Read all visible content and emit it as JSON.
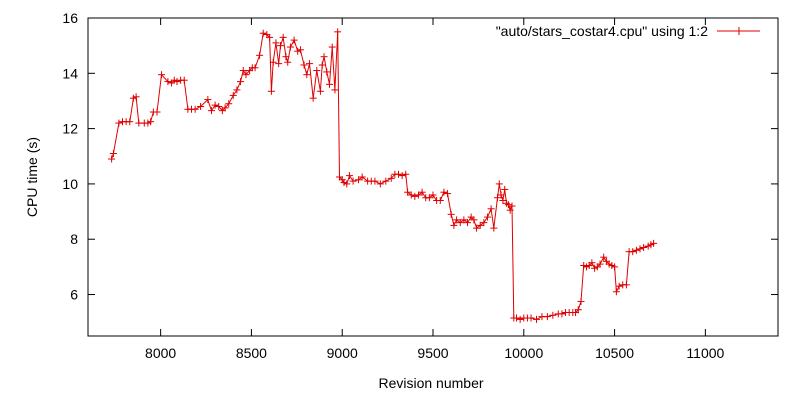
{
  "chart_data": {
    "type": "line",
    "title": "",
    "xlabel": "Revision number",
    "ylabel": "CPU time (s)",
    "xlim": [
      7600,
      11400
    ],
    "ylim": [
      4.5,
      16
    ],
    "xticks": [
      8000,
      8500,
      9000,
      9500,
      10000,
      10500,
      11000
    ],
    "yticks": [
      6,
      8,
      10,
      12,
      14,
      16
    ],
    "grid": false,
    "legend_position": "top-right",
    "colors": {
      "series": "#e00000",
      "axes": "#000000"
    },
    "series": [
      {
        "name": "\"auto/stars_costar4.cpu\" using 1:2",
        "marker": "plus",
        "points": [
          [
            7730,
            10.9
          ],
          [
            7740,
            11.1
          ],
          [
            7770,
            12.2
          ],
          [
            7790,
            12.25
          ],
          [
            7810,
            12.25
          ],
          [
            7830,
            12.25
          ],
          [
            7850,
            13.1
          ],
          [
            7865,
            13.15
          ],
          [
            7880,
            12.2
          ],
          [
            7910,
            12.2
          ],
          [
            7930,
            12.2
          ],
          [
            7945,
            12.25
          ],
          [
            7960,
            12.6
          ],
          [
            7980,
            12.6
          ],
          [
            8005,
            13.95
          ],
          [
            8040,
            13.7
          ],
          [
            8060,
            13.65
          ],
          [
            8075,
            13.75
          ],
          [
            8090,
            13.7
          ],
          [
            8110,
            13.75
          ],
          [
            8130,
            13.75
          ],
          [
            8150,
            12.7
          ],
          [
            8170,
            12.7
          ],
          [
            8190,
            12.7
          ],
          [
            8220,
            12.8
          ],
          [
            8260,
            13.05
          ],
          [
            8280,
            12.65
          ],
          [
            8300,
            12.85
          ],
          [
            8320,
            12.8
          ],
          [
            8340,
            12.65
          ],
          [
            8355,
            12.75
          ],
          [
            8375,
            12.9
          ],
          [
            8400,
            13.2
          ],
          [
            8420,
            13.4
          ],
          [
            8440,
            13.7
          ],
          [
            8455,
            14.1
          ],
          [
            8470,
            13.95
          ],
          [
            8490,
            14.1
          ],
          [
            8505,
            14.2
          ],
          [
            8520,
            14.2
          ],
          [
            8545,
            14.65
          ],
          [
            8565,
            15.45
          ],
          [
            8585,
            15.4
          ],
          [
            8600,
            15.3
          ],
          [
            8610,
            13.35
          ],
          [
            8620,
            14.4
          ],
          [
            8635,
            15.1
          ],
          [
            8650,
            14.35
          ],
          [
            8660,
            15.0
          ],
          [
            8675,
            15.3
          ],
          [
            8690,
            14.6
          ],
          [
            8700,
            14.4
          ],
          [
            8715,
            14.95
          ],
          [
            8735,
            15.2
          ],
          [
            8755,
            14.8
          ],
          [
            8770,
            14.85
          ],
          [
            8790,
            14.3
          ],
          [
            8805,
            13.95
          ],
          [
            8820,
            14.35
          ],
          [
            8840,
            13.1
          ],
          [
            8860,
            14.1
          ],
          [
            8880,
            13.35
          ],
          [
            8890,
            14.3
          ],
          [
            8900,
            14.6
          ],
          [
            8915,
            14.05
          ],
          [
            8930,
            13.6
          ],
          [
            8945,
            14.95
          ],
          [
            8960,
            13.4
          ],
          [
            8975,
            15.5
          ],
          [
            8985,
            10.25
          ],
          [
            9000,
            10.15
          ],
          [
            9010,
            10.05
          ],
          [
            9025,
            10.0
          ],
          [
            9040,
            10.3
          ],
          [
            9060,
            10.1
          ],
          [
            9090,
            10.15
          ],
          [
            9110,
            10.25
          ],
          [
            9140,
            10.1
          ],
          [
            9160,
            10.1
          ],
          [
            9180,
            10.1
          ],
          [
            9210,
            10.0
          ],
          [
            9240,
            10.1
          ],
          [
            9270,
            10.2
          ],
          [
            9290,
            10.35
          ],
          [
            9310,
            10.35
          ],
          [
            9330,
            10.3
          ],
          [
            9350,
            10.35
          ],
          [
            9360,
            9.7
          ],
          [
            9380,
            9.6
          ],
          [
            9400,
            9.55
          ],
          [
            9420,
            9.6
          ],
          [
            9440,
            9.7
          ],
          [
            9460,
            9.5
          ],
          [
            9480,
            9.5
          ],
          [
            9500,
            9.6
          ],
          [
            9520,
            9.4
          ],
          [
            9540,
            9.4
          ],
          [
            9560,
            9.7
          ],
          [
            9580,
            9.65
          ],
          [
            9600,
            8.9
          ],
          [
            9615,
            8.5
          ],
          [
            9630,
            8.7
          ],
          [
            9650,
            8.6
          ],
          [
            9670,
            8.7
          ],
          [
            9690,
            8.6
          ],
          [
            9710,
            8.8
          ],
          [
            9725,
            8.7
          ],
          [
            9740,
            8.4
          ],
          [
            9760,
            8.5
          ],
          [
            9780,
            8.6
          ],
          [
            9800,
            8.8
          ],
          [
            9820,
            9.1
          ],
          [
            9835,
            8.4
          ],
          [
            9855,
            9.5
          ],
          [
            9865,
            10.0
          ],
          [
            9875,
            9.6
          ],
          [
            9885,
            9.4
          ],
          [
            9895,
            9.8
          ],
          [
            9905,
            9.3
          ],
          [
            9915,
            9.25
          ],
          [
            9925,
            9.05
          ],
          [
            9935,
            9.2
          ],
          [
            9945,
            5.15
          ],
          [
            9960,
            5.15
          ],
          [
            9980,
            5.1
          ],
          [
            10000,
            5.15
          ],
          [
            10020,
            5.15
          ],
          [
            10040,
            5.15
          ],
          [
            10070,
            5.1
          ],
          [
            10100,
            5.2
          ],
          [
            10130,
            5.2
          ],
          [
            10160,
            5.25
          ],
          [
            10190,
            5.3
          ],
          [
            10210,
            5.3
          ],
          [
            10230,
            5.35
          ],
          [
            10250,
            5.35
          ],
          [
            10270,
            5.35
          ],
          [
            10285,
            5.35
          ],
          [
            10300,
            5.45
          ],
          [
            10315,
            5.75
          ],
          [
            10330,
            7.05
          ],
          [
            10345,
            7.0
          ],
          [
            10360,
            7.05
          ],
          [
            10375,
            7.15
          ],
          [
            10390,
            6.95
          ],
          [
            10405,
            7.0
          ],
          [
            10420,
            7.1
          ],
          [
            10440,
            7.35
          ],
          [
            10455,
            7.2
          ],
          [
            10470,
            7.1
          ],
          [
            10485,
            7.05
          ],
          [
            10500,
            7.0
          ],
          [
            10510,
            6.1
          ],
          [
            10525,
            6.3
          ],
          [
            10545,
            6.35
          ],
          [
            10565,
            6.35
          ],
          [
            10580,
            7.55
          ],
          [
            10600,
            7.55
          ],
          [
            10620,
            7.6
          ],
          [
            10640,
            7.65
          ],
          [
            10660,
            7.7
          ],
          [
            10685,
            7.75
          ],
          [
            10700,
            7.8
          ],
          [
            10715,
            7.85
          ]
        ]
      }
    ]
  }
}
